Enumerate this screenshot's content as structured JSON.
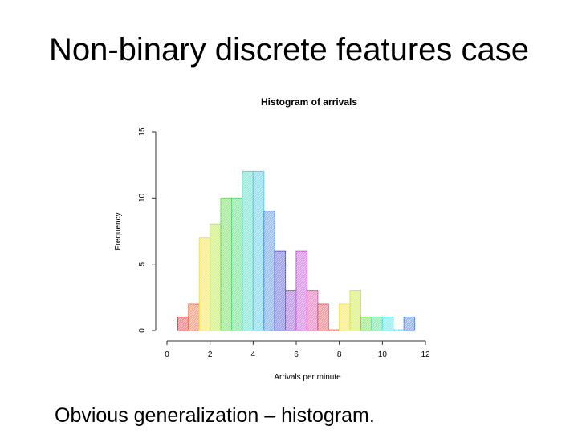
{
  "slide": {
    "title": "Non-binary discrete features case",
    "caption": "Obvious generalization – histogram."
  },
  "chart_data": {
    "type": "bar",
    "title": "Histogram of arrivals",
    "xlabel": "Arrivals per minute",
    "ylabel": "Frequency",
    "xlim": [
      0,
      12
    ],
    "ylim": [
      0,
      15
    ],
    "xticks": [
      "0",
      "2",
      "4",
      "6",
      "8",
      "10",
      "12"
    ],
    "yticks": [
      "0",
      "5",
      "10",
      "15"
    ],
    "bin_width": 0.5,
    "bins": [
      {
        "x0": 0.5,
        "value": 1,
        "color": "#e8303a"
      },
      {
        "x0": 1.0,
        "value": 2,
        "color": "#ef6a3a"
      },
      {
        "x0": 1.5,
        "value": 7,
        "color": "#f2e030"
      },
      {
        "x0": 2.0,
        "value": 8,
        "color": "#b8e83a"
      },
      {
        "x0": 2.5,
        "value": 10,
        "color": "#5fd84a"
      },
      {
        "x0": 3.0,
        "value": 10,
        "color": "#44d870"
      },
      {
        "x0": 3.5,
        "value": 12,
        "color": "#45d8c0"
      },
      {
        "x0": 4.0,
        "value": 12,
        "color": "#45c8e8"
      },
      {
        "x0": 4.5,
        "value": 9,
        "color": "#4a8ae0"
      },
      {
        "x0": 5.0,
        "value": 6,
        "color": "#4a50d8"
      },
      {
        "x0": 5.5,
        "value": 3,
        "color": "#8a4ad8"
      },
      {
        "x0": 6.0,
        "value": 6,
        "color": "#c04ad8"
      },
      {
        "x0": 6.5,
        "value": 3,
        "color": "#e04aa8"
      },
      {
        "x0": 7.0,
        "value": 2,
        "color": "#e84a5a"
      },
      {
        "x0": 7.5,
        "value": 0,
        "color": "#e84a3a"
      },
      {
        "x0": 8.0,
        "value": 2,
        "color": "#f2e030"
      },
      {
        "x0": 8.5,
        "value": 3,
        "color": "#c8e830"
      },
      {
        "x0": 9.0,
        "value": 1,
        "color": "#6ad84a"
      },
      {
        "x0": 9.5,
        "value": 1,
        "color": "#4ad88a"
      },
      {
        "x0": 10.0,
        "value": 1,
        "color": "#4ae0e0"
      },
      {
        "x0": 10.5,
        "value": 0,
        "color": "#4ac0e8"
      },
      {
        "x0": 11.0,
        "value": 1,
        "color": "#4a80e0"
      }
    ]
  }
}
